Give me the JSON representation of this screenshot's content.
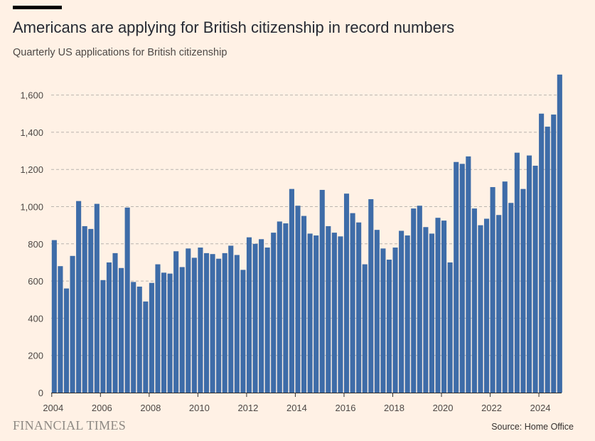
{
  "header": {
    "title": "Americans are applying for British citizenship in record numbers",
    "subtitle": "Quarterly US applications for British citizenship"
  },
  "footer": {
    "brand": "FINANCIAL TIMES",
    "source": "Source: Home Office"
  },
  "colors": {
    "bar": "#3e6ca8",
    "background": "#fff1e5",
    "grid": "#b9b4ae",
    "axis": "#33302e"
  },
  "chart_data": {
    "type": "bar",
    "title": "Americans are applying for British citizenship in record numbers",
    "subtitle": "Quarterly US applications for British citizenship",
    "xlabel": "",
    "ylabel": "",
    "ylim": [
      0,
      1700
    ],
    "yticks": [
      0,
      200,
      400,
      600,
      800,
      1000,
      1200,
      1400,
      1600
    ],
    "ytick_labels": [
      "0",
      "200",
      "400",
      "600",
      "800",
      "1,000",
      "1,200",
      "1,400",
      "1,600"
    ],
    "xtick_labels": [
      "2004",
      "2006",
      "2008",
      "2010",
      "2012",
      "2014",
      "2016",
      "2018",
      "2020",
      "2022",
      "2024"
    ],
    "grid": "horizontal dashed",
    "series": [
      {
        "start_year": 2004,
        "values": [
          820,
          680,
          560,
          735,
          1030,
          895,
          880,
          1015,
          605,
          700,
          750,
          670,
          995,
          595,
          570,
          490,
          590,
          690,
          645,
          640,
          760,
          675,
          775,
          725,
          780,
          750,
          745,
          720,
          750,
          790,
          740,
          660,
          835,
          800,
          825,
          780,
          860,
          920,
          910,
          1095,
          1005,
          950,
          855,
          845,
          1090,
          895,
          860,
          840,
          1070,
          965,
          915,
          690,
          1040,
          875,
          775,
          715,
          780,
          870,
          845,
          990,
          1005,
          890,
          855,
          940,
          925,
          700,
          1240,
          1230,
          1270,
          990,
          900,
          935,
          1105,
          955,
          1135,
          1020,
          1290,
          1095,
          1275,
          1220,
          1500,
          1430,
          1495,
          1710
        ]
      }
    ]
  }
}
